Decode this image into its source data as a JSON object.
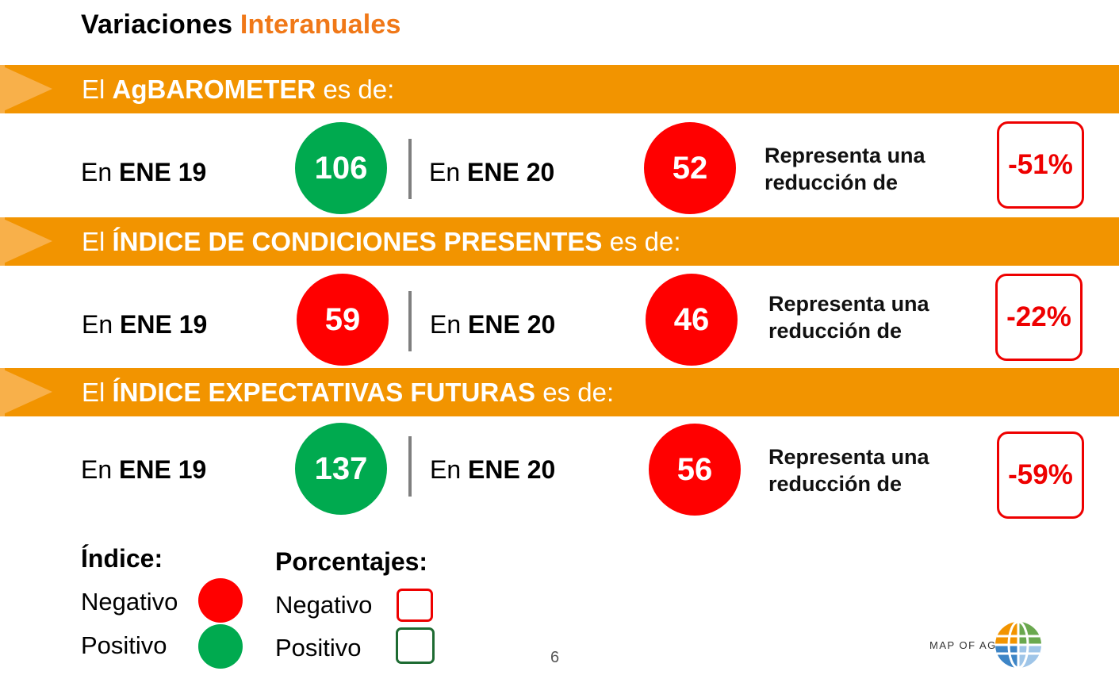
{
  "title": {
    "main": "Variaciones",
    "accent": "Interanuales"
  },
  "sections": [
    {
      "band": {
        "pre": "El",
        "bold": "AgBAROMETER",
        "post": "es de:"
      },
      "before": {
        "pre": "En",
        "bold": "ENE 19",
        "value": "106",
        "status": "positive"
      },
      "after": {
        "pre": "En",
        "bold": "ENE 20",
        "value": "52",
        "status": "negative"
      },
      "represent": {
        "line1": "Representa una",
        "line2": "reducción de"
      },
      "change": "-51%"
    },
    {
      "band": {
        "pre": "El",
        "bold": "ÍNDICE DE CONDICIONES PRESENTES",
        "post": "es de:"
      },
      "before": {
        "pre": "En",
        "bold": "ENE 19",
        "value": "59",
        "status": "negative"
      },
      "after": {
        "pre": "En",
        "bold": "ENE 20",
        "value": "46",
        "status": "negative"
      },
      "represent": {
        "line1": "Representa una",
        "line2": "reducción de"
      },
      "change": "-22%"
    },
    {
      "band": {
        "pre": "El",
        "bold": "ÍNDICE EXPECTATIVAS FUTURAS",
        "post": "es de:"
      },
      "before": {
        "pre": "En",
        "bold": "ENE 19",
        "value": "137",
        "status": "positive"
      },
      "after": {
        "pre": "En",
        "bold": "ENE 20",
        "value": "56",
        "status": "negative"
      },
      "represent": {
        "line1": "Representa una",
        "line2": "reducción de"
      },
      "change": "-59%"
    }
  ],
  "legend": {
    "index_title": "Índice:",
    "pct_title": "Porcentajes:",
    "negative": "Negativo",
    "positive": "Positivo"
  },
  "page_number": "6",
  "logo_text": "MAP OF AG",
  "colors": {
    "band": "#f29400",
    "band_chevron": "#f8b04a",
    "accent": "#f07818",
    "positive": "#00aa4f",
    "negative": "#ff0000",
    "positive_border": "#1e6b32"
  }
}
